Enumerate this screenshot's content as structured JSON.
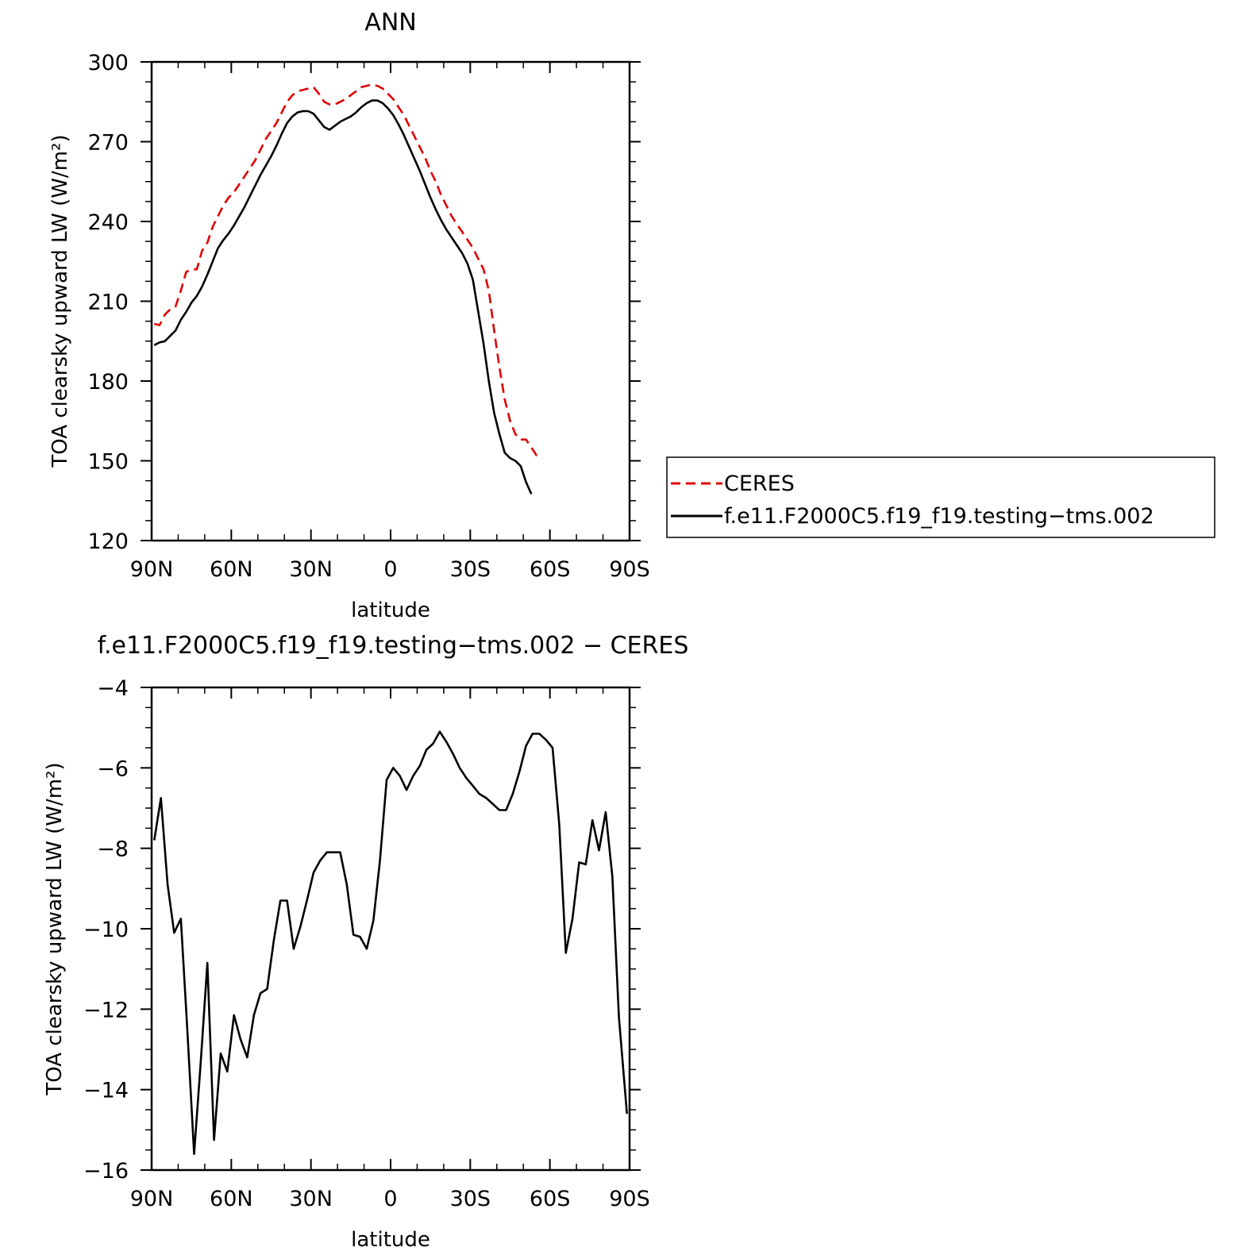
{
  "chart_data": [
    {
      "type": "line",
      "title": "ANN",
      "xlabel": "latitude",
      "ylabel": "TOA clearsky upward LW (W/m²)",
      "xlim": [
        90,
        -90
      ],
      "ylim": [
        120,
        300
      ],
      "xticks": [
        {
          "value": 90,
          "label": "90N"
        },
        {
          "value": 60,
          "label": "60N"
        },
        {
          "value": 30,
          "label": "30N"
        },
        {
          "value": 0,
          "label": "0"
        },
        {
          "value": -30,
          "label": "30S"
        },
        {
          "value": -60,
          "label": "60S"
        },
        {
          "value": -90,
          "label": "90S"
        }
      ],
      "yticks": [
        120,
        150,
        180,
        210,
        240,
        270,
        300
      ],
      "grid": false,
      "legend": {
        "position": "right"
      },
      "series": [
        {
          "name": "CERES",
          "color": "#e00000",
          "dash": "dashed",
          "points": [
            [
              89,
              201.5
            ],
            [
              87,
              201
            ],
            [
              85,
              205
            ],
            [
              83,
              207
            ],
            [
              81,
              208
            ],
            [
              79,
              214
            ],
            [
              77,
              221
            ],
            [
              75,
              222
            ],
            [
              73,
              222
            ],
            [
              71,
              229
            ],
            [
              69,
              232
            ],
            [
              67,
              238
            ],
            [
              65,
              242
            ],
            [
              63,
              246
            ],
            [
              61,
              249
            ],
            [
              59,
              251
            ],
            [
              57,
              254
            ],
            [
              55,
              257
            ],
            [
              53,
              260
            ],
            [
              51,
              263
            ],
            [
              49,
              267
            ],
            [
              47,
              271
            ],
            [
              45,
              274
            ],
            [
              43,
              277
            ],
            [
              41,
              281
            ],
            [
              39,
              285
            ],
            [
              37,
              287.5
            ],
            [
              35,
              289
            ],
            [
              33,
              289.5
            ],
            [
              31,
              290
            ],
            [
              29,
              290.5
            ],
            [
              27,
              288
            ],
            [
              25,
              285
            ],
            [
              23,
              284
            ],
            [
              21,
              284
            ],
            [
              19,
              285
            ],
            [
              17,
              286
            ],
            [
              15,
              287.5
            ],
            [
              13,
              289
            ],
            [
              11,
              290.5
            ],
            [
              9,
              291
            ],
            [
              7,
              291.5
            ],
            [
              5,
              291
            ],
            [
              3,
              290
            ],
            [
              1,
              288
            ],
            [
              -1,
              286
            ],
            [
              -3,
              283
            ],
            [
              -5,
              280
            ],
            [
              -7,
              276
            ],
            [
              -9,
              272
            ],
            [
              -11,
              268
            ],
            [
              -13,
              264
            ],
            [
              -15,
              259
            ],
            [
              -17,
              255
            ],
            [
              -19,
              250
            ],
            [
              -21,
              246
            ],
            [
              -23,
              242
            ],
            [
              -25,
              239
            ],
            [
              -27,
              236
            ],
            [
              -29,
              233
            ],
            [
              -31,
              230
            ],
            [
              -33,
              226
            ],
            [
              -35,
              222
            ],
            [
              -37,
              214
            ],
            [
              -39,
              199
            ],
            [
              -41,
              185
            ],
            [
              -43,
              173
            ],
            [
              -45,
              165
            ],
            [
              -47,
              160
            ],
            [
              -49,
              158
            ],
            [
              -51,
              158
            ],
            [
              -53,
              155
            ],
            [
              -55,
              152
            ],
            [
              -57,
              151
            ]
          ]
        },
        {
          "name": "f.e11.F2000C5.f19_f19.testing−tms.002",
          "color": "#000000",
          "dash": "solid",
          "points": [
            [
              89,
              193.5
            ],
            [
              87,
              194.5
            ],
            [
              85,
              195
            ],
            [
              83,
              197
            ],
            [
              81,
              199
            ],
            [
              79,
              203
            ],
            [
              77,
              206
            ],
            [
              75,
              209.5
            ],
            [
              73,
              212
            ],
            [
              71,
              215.5
            ],
            [
              69,
              220
            ],
            [
              67,
              225
            ],
            [
              65,
              230
            ],
            [
              63,
              233
            ],
            [
              61,
              235.5
            ],
            [
              59,
              238.5
            ],
            [
              57,
              242
            ],
            [
              55,
              245.5
            ],
            [
              53,
              249.5
            ],
            [
              51,
              253.5
            ],
            [
              49,
              257.5
            ],
            [
              47,
              261
            ],
            [
              45,
              264.5
            ],
            [
              43,
              268.5
            ],
            [
              41,
              273
            ],
            [
              39,
              277
            ],
            [
              37,
              279.5
            ],
            [
              35,
              281
            ],
            [
              33,
              281.5
            ],
            [
              31,
              281.5
            ],
            [
              29,
              280.5
            ],
            [
              27,
              278
            ],
            [
              25,
              275.5
            ],
            [
              23,
              274.5
            ],
            [
              21,
              276
            ],
            [
              19,
              277.5
            ],
            [
              17,
              278.5
            ],
            [
              15,
              279.5
            ],
            [
              13,
              281
            ],
            [
              11,
              283
            ],
            [
              9,
              284.5
            ],
            [
              7,
              285.5
            ],
            [
              5,
              285.5
            ],
            [
              3,
              284.5
            ],
            [
              1,
              282.5
            ],
            [
              -1,
              280
            ],
            [
              -3,
              276.5
            ],
            [
              -5,
              272.5
            ],
            [
              -7,
              268
            ],
            [
              -9,
              263.5
            ],
            [
              -11,
              259
            ],
            [
              -13,
              254
            ],
            [
              -15,
              249
            ],
            [
              -17,
              244.5
            ],
            [
              -19,
              240.5
            ],
            [
              -21,
              237
            ],
            [
              -23,
              234
            ],
            [
              -25,
              231
            ],
            [
              -27,
              228
            ],
            [
              -29,
              224
            ],
            [
              -31,
              218
            ],
            [
              -33,
              206
            ],
            [
              -35,
              194
            ],
            [
              -37,
              180
            ],
            [
              -39,
              168
            ],
            [
              -41,
              160
            ],
            [
              -43,
              153
            ],
            [
              -45,
              151
            ],
            [
              -47,
              150
            ],
            [
              -49,
              148
            ],
            [
              -51,
              142
            ],
            [
              -53,
              137.5
            ]
          ]
        }
      ]
    },
    {
      "type": "line",
      "title": "f.e11.F2000C5.f19_f19.testing−tms.002 − CERES",
      "xlabel": "latitude",
      "ylabel": "TOA clearsky upward LW (W/m²)",
      "xlim": [
        90,
        -90
      ],
      "ylim": [
        -16,
        -4
      ],
      "xticks": [
        {
          "value": 90,
          "label": "90N"
        },
        {
          "value": 60,
          "label": "60N"
        },
        {
          "value": 30,
          "label": "30N"
        },
        {
          "value": 0,
          "label": "0"
        },
        {
          "value": -30,
          "label": "30S"
        },
        {
          "value": -60,
          "label": "60S"
        },
        {
          "value": -90,
          "label": "90S"
        }
      ],
      "yticks": [
        -16,
        -14,
        -12,
        -10,
        -8,
        -6,
        -4
      ],
      "grid": false,
      "series": [
        {
          "color": "#000000",
          "dash": "solid",
          "points": [
            [
              89,
              -7.8
            ],
            [
              86.5,
              -6.75
            ],
            [
              84,
              -8.9
            ],
            [
              81.5,
              -10.1
            ],
            [
              79,
              -9.75
            ],
            [
              76.5,
              -12.6
            ],
            [
              74,
              -15.6
            ],
            [
              71.5,
              -13.3
            ],
            [
              69,
              -10.85
            ],
            [
              66.5,
              -15.25
            ],
            [
              64,
              -13.1
            ],
            [
              61.5,
              -13.55
            ],
            [
              59,
              -12.15
            ],
            [
              56.5,
              -12.75
            ],
            [
              54,
              -13.2
            ],
            [
              51.5,
              -12.15
            ],
            [
              49,
              -11.6
            ],
            [
              46.5,
              -11.5
            ],
            [
              44,
              -10.3
            ],
            [
              41.5,
              -9.3
            ],
            [
              39,
              -9.3
            ],
            [
              36.5,
              -10.5
            ],
            [
              34,
              -9.95
            ],
            [
              31.5,
              -9.3
            ],
            [
              29,
              -8.6
            ],
            [
              26.5,
              -8.3
            ],
            [
              24,
              -8.1
            ],
            [
              21.5,
              -8.1
            ],
            [
              19,
              -8.1
            ],
            [
              16.5,
              -8.9
            ],
            [
              14,
              -10.15
            ],
            [
              11.5,
              -10.2
            ],
            [
              9,
              -10.5
            ],
            [
              6.5,
              -9.8
            ],
            [
              4,
              -8.3
            ],
            [
              1.5,
              -6.3
            ],
            [
              -1,
              -6.0
            ],
            [
              -3.5,
              -6.2
            ],
            [
              -6,
              -6.55
            ],
            [
              -8.5,
              -6.2
            ],
            [
              -11,
              -5.95
            ],
            [
              -13.5,
              -5.55
            ],
            [
              -16,
              -5.4
            ],
            [
              -18.5,
              -5.1
            ],
            [
              -21,
              -5.35
            ],
            [
              -23.5,
              -5.65
            ],
            [
              -26,
              -6.0
            ],
            [
              -28.5,
              -6.25
            ],
            [
              -31,
              -6.45
            ],
            [
              -33.5,
              -6.65
            ],
            [
              -36,
              -6.75
            ],
            [
              -38.5,
              -6.9
            ],
            [
              -41,
              -7.05
            ],
            [
              -43.5,
              -7.05
            ],
            [
              -46,
              -6.65
            ],
            [
              -48.5,
              -6.1
            ],
            [
              -51,
              -5.45
            ],
            [
              -53.5,
              -5.15
            ],
            [
              -56,
              -5.15
            ],
            [
              -58.5,
              -5.3
            ],
            [
              -61,
              -5.5
            ],
            [
              -63.5,
              -7.4
            ],
            [
              -66,
              -10.6
            ],
            [
              -68.5,
              -9.75
            ],
            [
              -71,
              -8.35
            ],
            [
              -73.5,
              -8.4
            ],
            [
              -76,
              -7.3
            ],
            [
              -78.5,
              -8.05
            ],
            [
              -81,
              -7.1
            ],
            [
              -83.5,
              -8.7
            ],
            [
              -86,
              -12.2
            ],
            [
              -89,
              -14.6
            ]
          ]
        }
      ]
    }
  ]
}
